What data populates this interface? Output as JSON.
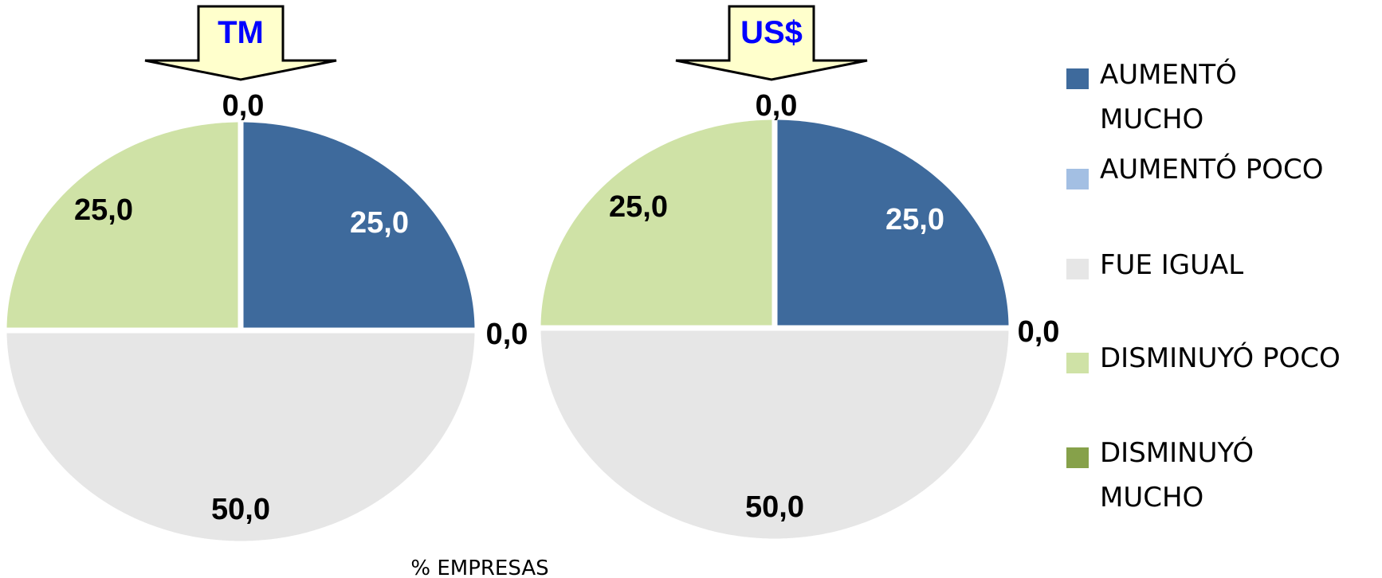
{
  "chart_data": {
    "type": "pie",
    "caption": "% EMPRESAS",
    "legend_placement": "right",
    "categories": [
      "AUMENTÓ MUCHO",
      "AUMENTÓ POCO",
      "FUE IGUAL",
      "DISMINUYÓ POCO",
      "DISMINUYÓ MUCHO"
    ],
    "legend": [
      {
        "lines": [
          "AUMENTÓ",
          "MUCHO"
        ],
        "color": "#3E6A9C"
      },
      {
        "lines": [
          "AUMENTÓ POCO"
        ],
        "color": "#A3BFE3"
      },
      {
        "lines": [
          "FUE IGUAL"
        ],
        "color": "#E6E6E6"
      },
      {
        "lines": [
          "DISMINUYÓ POCO"
        ],
        "color": "#CFE2A6"
      },
      {
        "lines": [
          "DISMINUYÓ",
          "MUCHO"
        ],
        "color": "#86A14A"
      }
    ],
    "pies": [
      {
        "name": "TM",
        "values": [
          25.0,
          0.0,
          50.0,
          25.0,
          0.0
        ],
        "labels": [
          "25,0",
          "0,0",
          "50,0",
          "25,0",
          "0,0"
        ]
      },
      {
        "name": "US$",
        "values": [
          25.0,
          0.0,
          50.0,
          25.0,
          0.0
        ],
        "labels": [
          "25,0",
          "0,0",
          "50,0",
          "25,0",
          "0,0"
        ]
      }
    ]
  },
  "colors": {
    "arrow_fill": "#FFFFCC",
    "arrow_text": "#0000FF",
    "label_dark": "#000000",
    "label_light": "#FFFFFF"
  }
}
